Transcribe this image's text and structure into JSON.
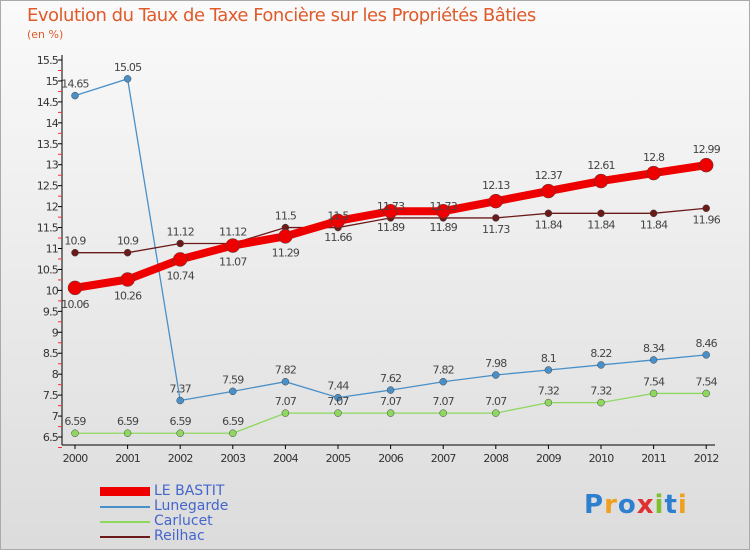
{
  "chart_data": {
    "type": "line",
    "title": "Evolution du Taux de Taxe Foncière sur les Propriétés Bâties",
    "ylabel": "(en %)",
    "xlabel": "",
    "x": [
      "2000",
      "2001",
      "2002",
      "2003",
      "2004",
      "2005",
      "2006",
      "2007",
      "2008",
      "2009",
      "2010",
      "2011",
      "2012"
    ],
    "ylim": [
      6.5,
      15.5
    ],
    "yticks": [
      "6.5",
      "7",
      "7.5",
      "8",
      "8.5",
      "9",
      "9.5",
      "10",
      "10.5",
      "11",
      "11.5",
      "12",
      "12.5",
      "13",
      "13.5",
      "14",
      "14.5",
      "15",
      "15.5"
    ],
    "legend_position": "bottom-left",
    "series": [
      {
        "name": "LE BASTIT",
        "color": "#ee0000",
        "values": [
          10.06,
          10.26,
          10.74,
          11.07,
          11.29,
          11.66,
          11.89,
          11.89,
          12.13,
          12.37,
          12.61,
          12.8,
          12.99
        ]
      },
      {
        "name": "Lunegarde",
        "color": "#4a90c8",
        "values": [
          14.65,
          15.05,
          7.37,
          7.59,
          7.82,
          7.44,
          7.62,
          7.82,
          7.98,
          8.1,
          8.22,
          8.34,
          8.46
        ]
      },
      {
        "name": "Carlucet",
        "color": "#8ed860",
        "values": [
          6.59,
          6.59,
          6.59,
          6.59,
          7.07,
          7.07,
          7.07,
          7.07,
          7.07,
          7.32,
          7.32,
          7.54,
          7.54
        ]
      },
      {
        "name": "Reilhac",
        "color": "#6b1a1a",
        "values": [
          10.9,
          10.9,
          11.12,
          11.12,
          11.5,
          11.5,
          11.73,
          11.73,
          11.73,
          11.84,
          11.84,
          11.84,
          11.96
        ]
      }
    ]
  },
  "logo": {
    "text": "Proxiti"
  }
}
